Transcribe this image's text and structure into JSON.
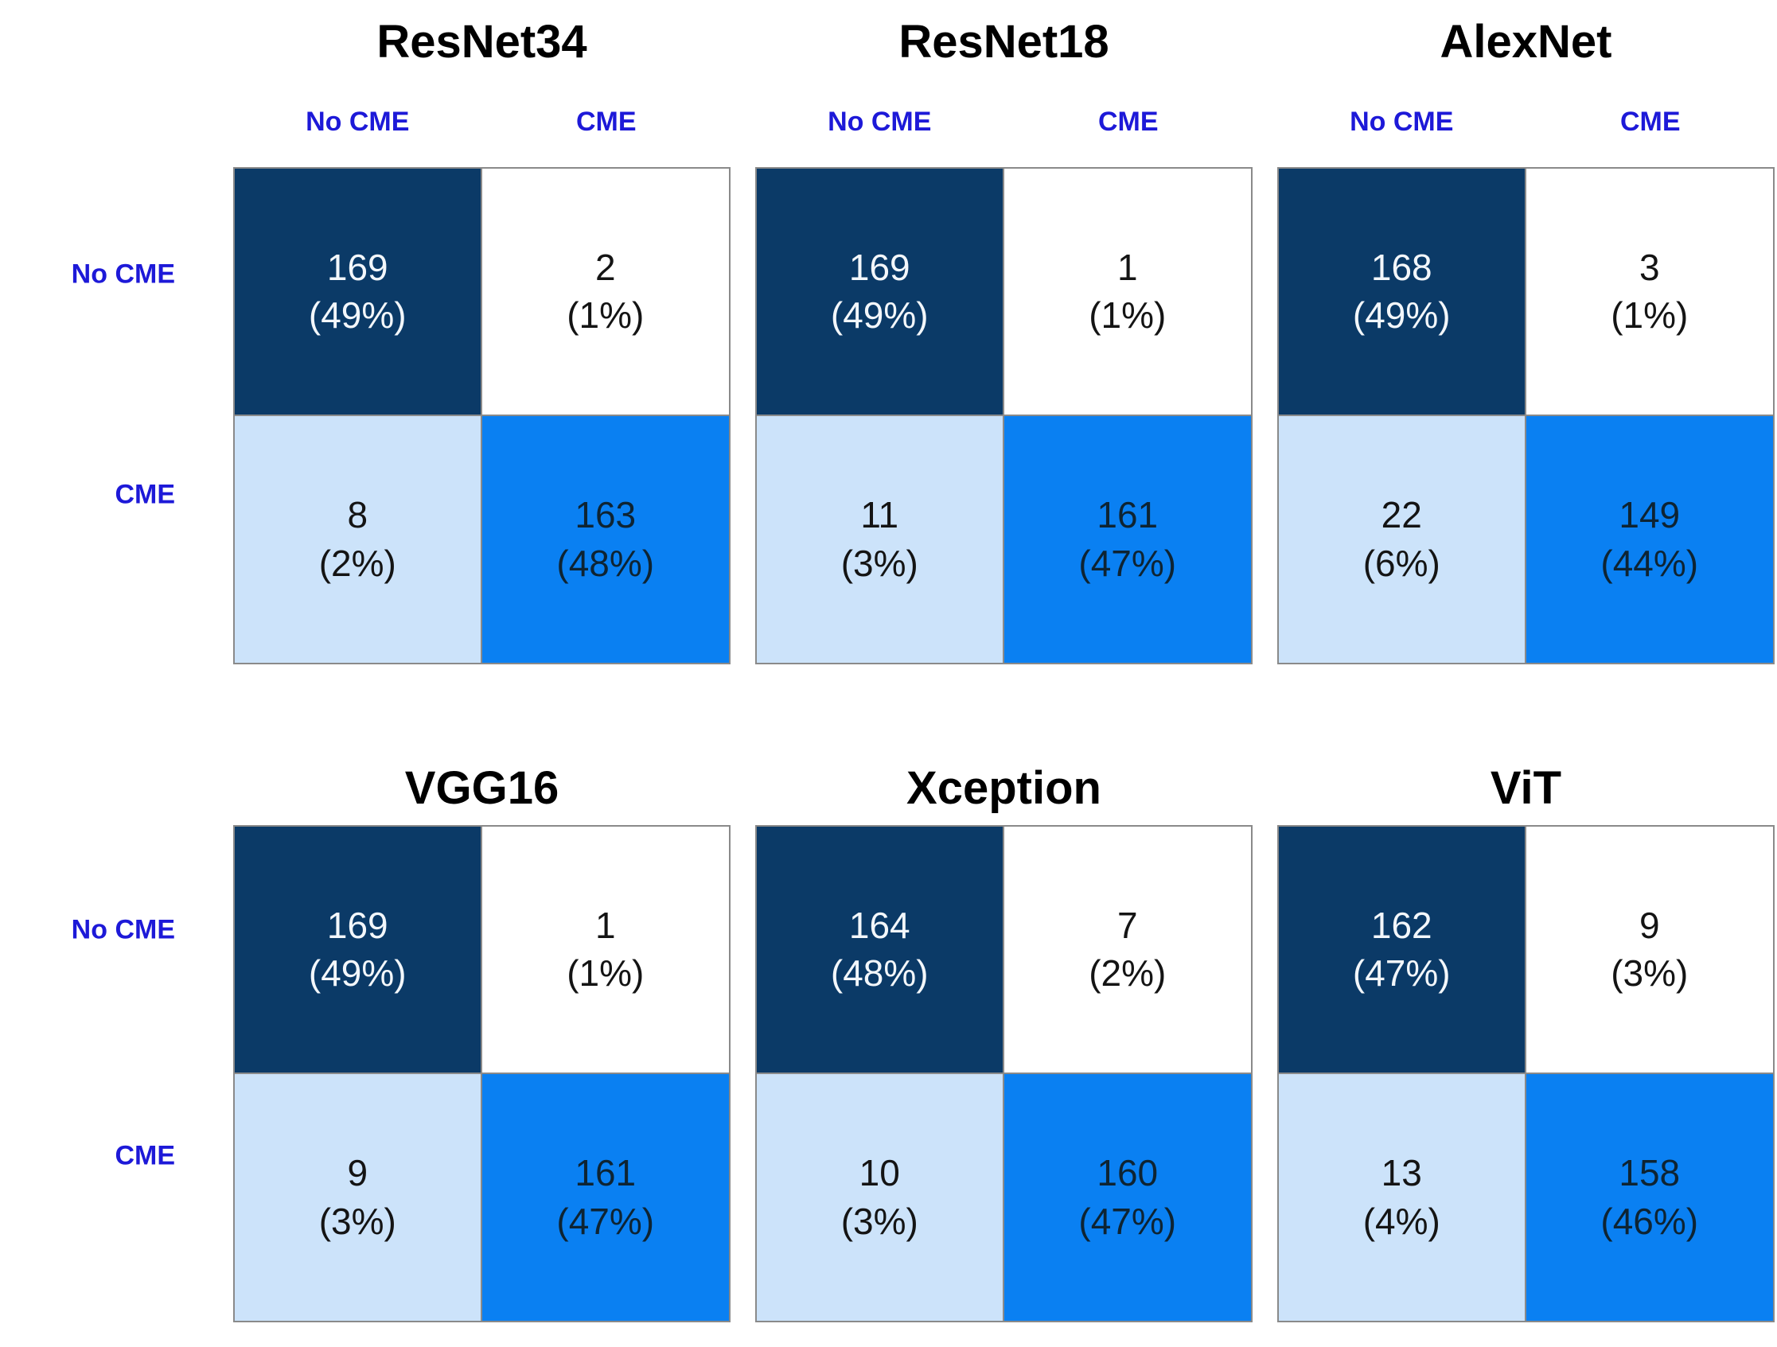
{
  "axis": {
    "col_headers": [
      "No CME",
      "CME"
    ],
    "row_labels": [
      "No CME",
      "CME"
    ]
  },
  "colors": {
    "true_negative_cell": "#0b3a67",
    "false_positive_cell": "#ffffff",
    "false_negative_cell": "#cce3fa",
    "true_positive_cell": "#0a80f2",
    "axis_label_blue": "#1d19d8",
    "cell_border_gray": "#8a8a8a",
    "title_black": "#000000"
  },
  "panels": [
    {
      "title": "ResNet34",
      "cells": [
        {
          "value": "169",
          "percent": "(49%)"
        },
        {
          "value": "2",
          "percent": "(1%)"
        },
        {
          "value": "8",
          "percent": "(2%)"
        },
        {
          "value": "163",
          "percent": "(48%)"
        }
      ]
    },
    {
      "title": "ResNet18",
      "cells": [
        {
          "value": "169",
          "percent": "(49%)"
        },
        {
          "value": "1",
          "percent": "(1%)"
        },
        {
          "value": "11",
          "percent": "(3%)"
        },
        {
          "value": "161",
          "percent": "(47%)"
        }
      ]
    },
    {
      "title": "AlexNet",
      "cells": [
        {
          "value": "168",
          "percent": "(49%)"
        },
        {
          "value": "3",
          "percent": "(1%)"
        },
        {
          "value": "22",
          "percent": "(6%)"
        },
        {
          "value": "149",
          "percent": "(44%)"
        }
      ]
    },
    {
      "title": "VGG16",
      "cells": [
        {
          "value": "169",
          "percent": "(49%)"
        },
        {
          "value": "1",
          "percent": "(1%)"
        },
        {
          "value": "9",
          "percent": "(3%)"
        },
        {
          "value": "161",
          "percent": "(47%)"
        }
      ]
    },
    {
      "title": "Xception",
      "cells": [
        {
          "value": "164",
          "percent": "(48%)"
        },
        {
          "value": "7",
          "percent": "(2%)"
        },
        {
          "value": "10",
          "percent": "(3%)"
        },
        {
          "value": "160",
          "percent": "(47%)"
        }
      ]
    },
    {
      "title": "ViT",
      "cells": [
        {
          "value": "162",
          "percent": "(47%)"
        },
        {
          "value": "9",
          "percent": "(3%)"
        },
        {
          "value": "13",
          "percent": "(4%)"
        },
        {
          "value": "158",
          "percent": "(46%)"
        }
      ]
    }
  ],
  "chart_data": [
    {
      "type": "heatmap",
      "title": "ResNet34",
      "x_labels": [
        "No CME",
        "CME"
      ],
      "y_labels": [
        "No CME",
        "CME"
      ],
      "values": [
        [
          169,
          2
        ],
        [
          8,
          163
        ]
      ],
      "percent_labels": [
        [
          "49%",
          "1%"
        ],
        [
          "2%",
          "48%"
        ]
      ]
    },
    {
      "type": "heatmap",
      "title": "ResNet18",
      "x_labels": [
        "No CME",
        "CME"
      ],
      "y_labels": [
        "No CME",
        "CME"
      ],
      "values": [
        [
          169,
          1
        ],
        [
          11,
          161
        ]
      ],
      "percent_labels": [
        [
          "49%",
          "1%"
        ],
        [
          "3%",
          "47%"
        ]
      ]
    },
    {
      "type": "heatmap",
      "title": "AlexNet",
      "x_labels": [
        "No CME",
        "CME"
      ],
      "y_labels": [
        "No CME",
        "CME"
      ],
      "values": [
        [
          168,
          3
        ],
        [
          22,
          149
        ]
      ],
      "percent_labels": [
        [
          "49%",
          "1%"
        ],
        [
          "6%",
          "44%"
        ]
      ]
    },
    {
      "type": "heatmap",
      "title": "VGG16",
      "x_labels": [
        "No CME",
        "CME"
      ],
      "y_labels": [
        "No CME",
        "CME"
      ],
      "values": [
        [
          169,
          1
        ],
        [
          9,
          161
        ]
      ],
      "percent_labels": [
        [
          "49%",
          "1%"
        ],
        [
          "3%",
          "47%"
        ]
      ]
    },
    {
      "type": "heatmap",
      "title": "Xception",
      "x_labels": [
        "No CME",
        "CME"
      ],
      "y_labels": [
        "No CME",
        "CME"
      ],
      "values": [
        [
          164,
          7
        ],
        [
          10,
          160
        ]
      ],
      "percent_labels": [
        [
          "48%",
          "2%"
        ],
        [
          "3%",
          "47%"
        ]
      ]
    },
    {
      "type": "heatmap",
      "title": "ViT",
      "x_labels": [
        "No CME",
        "CME"
      ],
      "y_labels": [
        "No CME",
        "CME"
      ],
      "values": [
        [
          162,
          9
        ],
        [
          13,
          158
        ]
      ],
      "percent_labels": [
        [
          "47%",
          "3%"
        ],
        [
          "4%",
          "46%"
        ]
      ]
    }
  ]
}
